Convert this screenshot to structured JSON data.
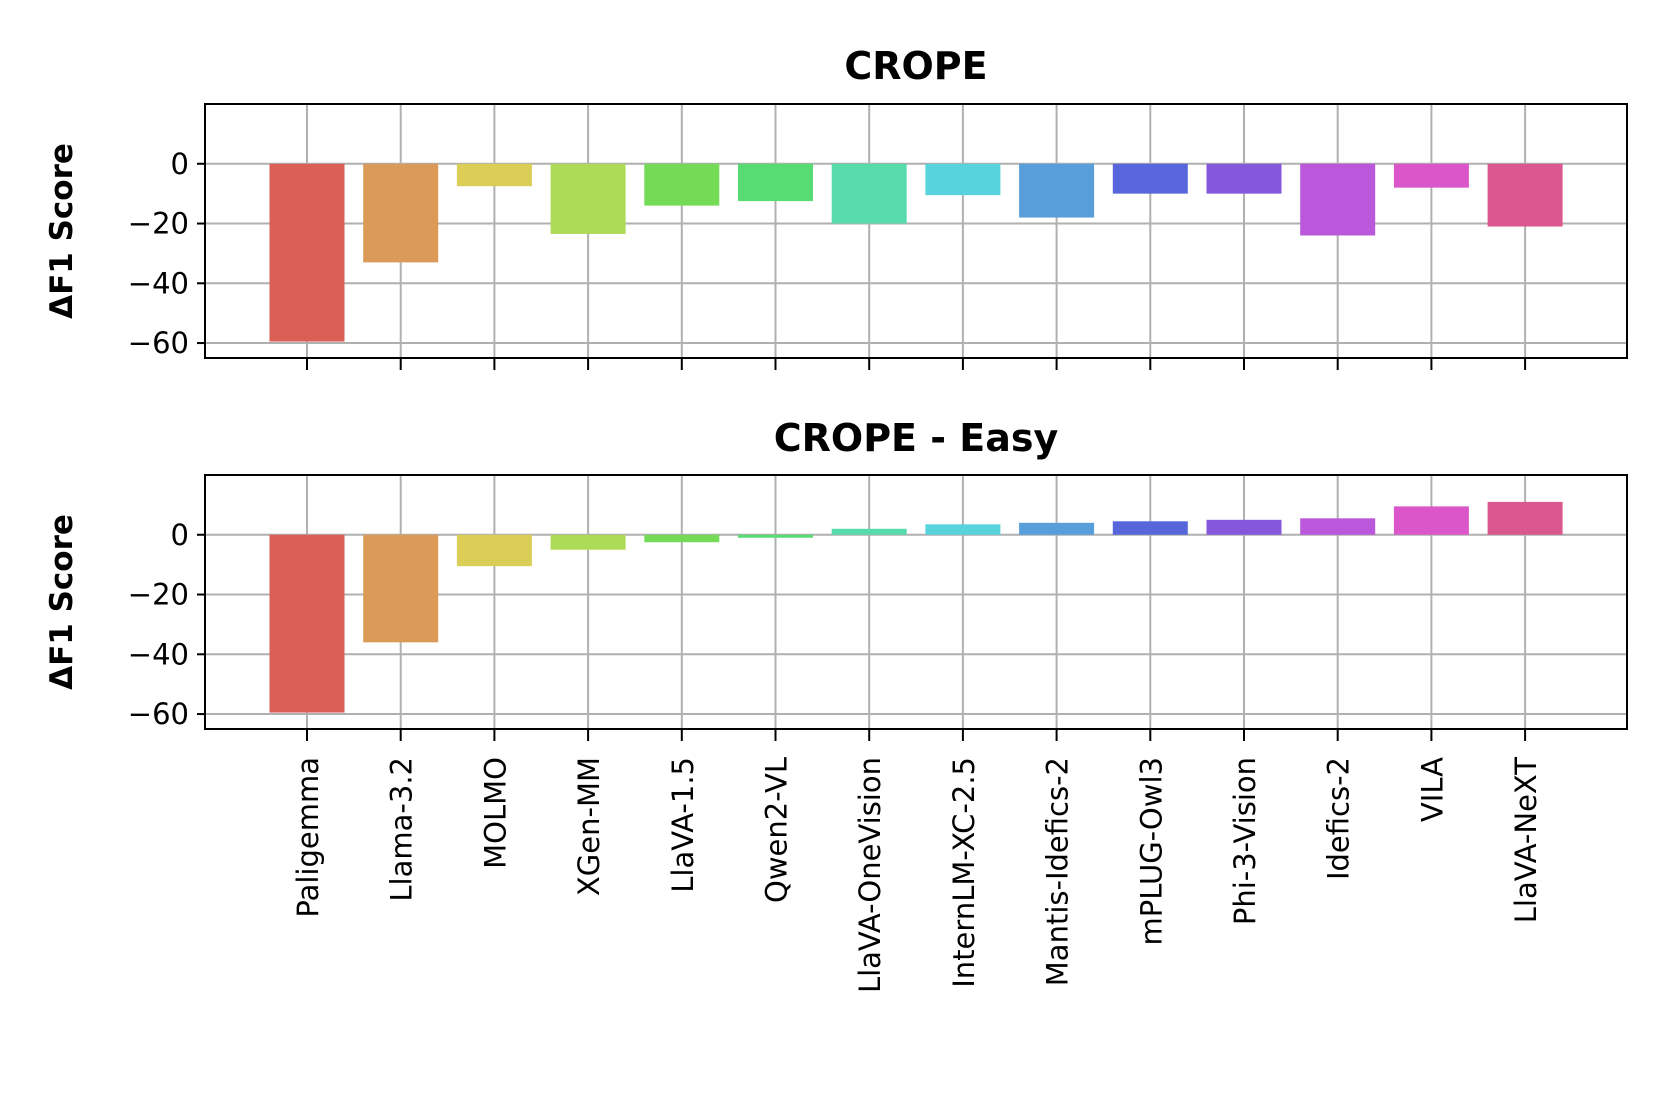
{
  "chart_data": [
    {
      "type": "bar",
      "title": "CROPE",
      "ylabel": "ΔF1 Score",
      "xlabel": "",
      "ylim": [
        -65,
        20
      ],
      "yticks": [
        0,
        -20,
        -40,
        -60
      ],
      "ytick_labels": [
        "0",
        "−20",
        "−40",
        "−60"
      ],
      "grid": true,
      "show_x_tick_labels": false,
      "categories": [
        "Paligemma",
        "Llama-3.2",
        "MOLMO",
        "XGen-MM",
        "LlaVA-1.5",
        "Qwen2-VL",
        "LlaVA-OneVision",
        "InternLM-XC-2.5",
        "Mantis-Idefics-2",
        "mPLUG-Owl3",
        "Phi-3-Vision",
        "Idefics-2",
        "VILA",
        "LlaVA-NeXT"
      ],
      "values": [
        -59.5,
        -33,
        -7.5,
        -23.5,
        -14,
        -12.5,
        -20,
        -10.5,
        -18,
        -10,
        -10,
        -24,
        -8,
        -21
      ]
    },
    {
      "type": "bar",
      "title": "CROPE - Easy",
      "ylabel": "ΔF1 Score",
      "xlabel": "",
      "ylim": [
        -65,
        20
      ],
      "yticks": [
        0,
        -20,
        -40,
        -60
      ],
      "ytick_labels": [
        "0",
        "−20",
        "−40",
        "−60"
      ],
      "grid": true,
      "show_x_tick_labels": true,
      "categories": [
        "Paligemma",
        "Llama-3.2",
        "MOLMO",
        "XGen-MM",
        "LlaVA-1.5",
        "Qwen2-VL",
        "LlaVA-OneVision",
        "InternLM-XC-2.5",
        "Mantis-Idefics-2",
        "mPLUG-Owl3",
        "Phi-3-Vision",
        "Idefics-2",
        "VILA",
        "LlaVA-NeXT"
      ],
      "values": [
        -59.5,
        -36,
        -10.5,
        -5,
        -2.5,
        -1,
        2,
        3.5,
        4,
        4.5,
        5,
        5.5,
        9.5,
        11
      ]
    }
  ],
  "colors": [
    "#db5f57",
    "#db9a57",
    "#dbce57",
    "#aedb57",
    "#74db57",
    "#57db73",
    "#57dbab",
    "#57d3db",
    "#579edb",
    "#5766db",
    "#8557db",
    "#ba57db",
    "#db57c9",
    "#db5790"
  ]
}
